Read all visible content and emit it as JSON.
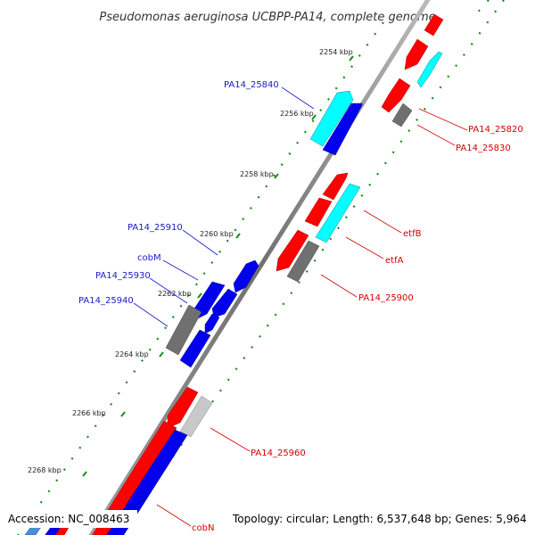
{
  "title": "Pseudomonas aeruginosa UCBPP-PA14, complete genome",
  "footer": {
    "accession": "Accession: NC_008463",
    "summary": "Topology: circular; Length: 6,537,648 bp; Genes: 5,964"
  },
  "ticks": [
    "2254 kbp",
    "2256 kbp",
    "2258 kbp",
    "2260 kbp",
    "2262 kbp",
    "2264 kbp",
    "2266 kbp",
    "2268 kbp"
  ],
  "labels": {
    "pa14_25840": "PA14_25840",
    "pa14_25910": "PA14_25910",
    "cobm": "cobM",
    "pa14_25930": "PA14_25930",
    "pa14_25940": "PA14_25940",
    "pa14_25820": "PA14_25820",
    "pa14_25830": "PA14_25830",
    "etfb": "etfB",
    "etfa": "etfA",
    "pa14_25900": "PA14_25900",
    "pa14_25960": "PA14_25960",
    "cobn": "cobN"
  },
  "colors": {
    "blue_gene": "#0000ee",
    "red_gene": "#ff0000",
    "cyan_gene": "#00ffff",
    "gray_gene": "#707070",
    "light_gray_gene": "#c8c8c8",
    "backbone": "#888888",
    "tick_dots": "#1a8a1a",
    "blue_label": "#1a1acc",
    "red_label": "#d40000"
  }
}
